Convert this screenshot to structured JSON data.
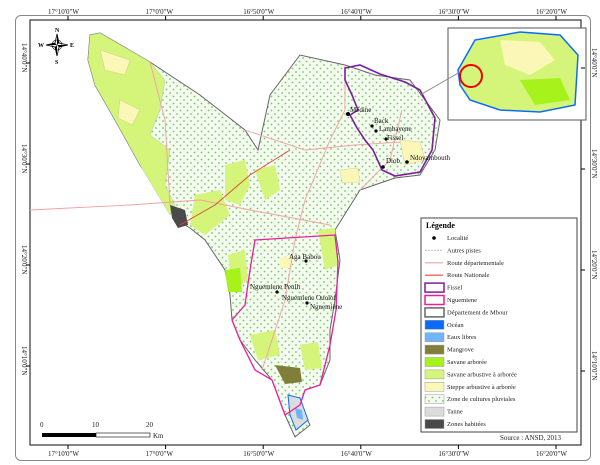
{
  "map": {
    "lon_ticks": [
      "17°10'0\"W",
      "17°0'0\"W",
      "16°50'0\"W",
      "16°40'0\"W",
      "16°30'0\"W",
      "16°20'0\"W"
    ],
    "lat_ticks": [
      "14°40'0\"N",
      "14°30'0\"N",
      "14°20'0\"N",
      "14°10'0\"N"
    ],
    "compass": {
      "n": "N",
      "s": "S",
      "e": "E",
      "w": "W"
    },
    "scale_bar": {
      "labels": [
        "0",
        "10",
        "20"
      ],
      "unit": "Km"
    },
    "localities": [
      "Médine",
      "Back",
      "Lambayene",
      "Fissel",
      "Diob",
      "Ndoyambouth",
      "Aga Babou",
      "Nguemiene Peulh",
      "Nguemiene Ouolof",
      "Nguemiène"
    ],
    "source": "Source : ANSD, 2013"
  },
  "legend": {
    "title": "Légende",
    "items": [
      {
        "label": "Localité",
        "symbol": "dot",
        "color": "#000000"
      },
      {
        "label": "Autres pistes",
        "symbol": "line",
        "color": "#cccccc"
      },
      {
        "label": "Route départementale",
        "symbol": "line",
        "color": "#f4a0a0"
      },
      {
        "label": "Route Nationale",
        "symbol": "line",
        "color": "#e84040"
      },
      {
        "label": "Fissel",
        "symbol": "box",
        "color": "#ffffff",
        "stroke": "#7b1fa2"
      },
      {
        "label": "Nguemiene",
        "symbol": "box",
        "color": "#ffffff",
        "stroke": "#e91e9c"
      },
      {
        "label": "Département de Mbour",
        "symbol": "box",
        "color": "#ffffff",
        "stroke": "#666666"
      },
      {
        "label": "Océan",
        "symbol": "box",
        "color": "#0a6cff"
      },
      {
        "label": "Eaux libres",
        "symbol": "box",
        "color": "#6fb4ff"
      },
      {
        "label": "Mangrove",
        "symbol": "box",
        "color": "#7f7f3a"
      },
      {
        "label": "Savane arborée",
        "symbol": "box",
        "color": "#a6f21a"
      },
      {
        "label": "Savane arbustive à arborée",
        "symbol": "box",
        "color": "#d4f57a"
      },
      {
        "label": "Steppe arbustive à arborée",
        "symbol": "box",
        "color": "#fbf7b6"
      },
      {
        "label": "Zone de cultures pluviales",
        "symbol": "dots",
        "color": "#f4fbef"
      },
      {
        "label": "Tanne",
        "symbol": "box",
        "color": "#dcdcdc"
      },
      {
        "label": "Zones habitées",
        "symbol": "box",
        "color": "#4a4a4a"
      }
    ]
  }
}
